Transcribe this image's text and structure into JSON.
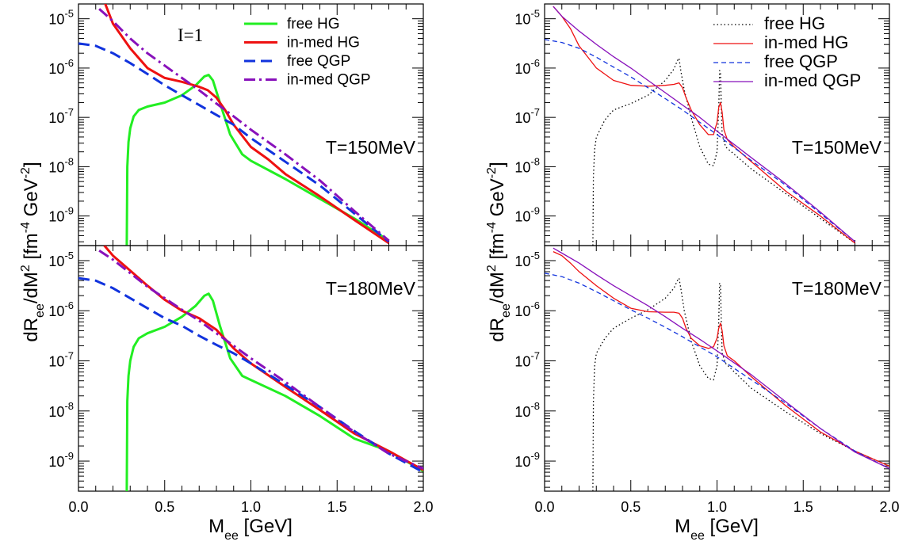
{
  "colors": {
    "free_HG_left": "#22ee22",
    "in_med_HG": "#ee1111",
    "free_QGP": "#1133dd",
    "in_med_QGP": "#8811bb",
    "free_HG_right": "#000000",
    "frame": "#000000"
  },
  "chart_data": [
    {
      "type": "line",
      "id": "left-top",
      "annotation": "I=1",
      "temperature_label": "T=150MeV",
      "xlim": [
        0.0,
        2.0
      ],
      "ylim_log10": [
        -9.6,
        -4.7
      ],
      "yscale": "log",
      "legend": [
        "free HG",
        "in-med HG",
        "free QGP",
        "in-med QGP"
      ],
      "series": [
        {
          "name": "free HG",
          "x": [
            0.28,
            0.283,
            0.29,
            0.3,
            0.32,
            0.35,
            0.4,
            0.5,
            0.6,
            0.68,
            0.73,
            0.755,
            0.78,
            0.82,
            0.88,
            0.95,
            1.0,
            1.2,
            1.4,
            1.6,
            1.8
          ],
          "y_log10": [
            -9.6,
            -8.0,
            -7.5,
            -7.22,
            -6.98,
            -6.85,
            -6.78,
            -6.7,
            -6.55,
            -6.35,
            -6.17,
            -6.14,
            -6.25,
            -6.7,
            -7.35,
            -7.75,
            -7.88,
            -8.25,
            -8.65,
            -9.05,
            -9.5
          ]
        },
        {
          "name": "in-med HG",
          "x": [
            0.15,
            0.2,
            0.3,
            0.4,
            0.5,
            0.6,
            0.7,
            0.75,
            0.8,
            0.85,
            0.9,
            1.0,
            1.1,
            1.2,
            1.4,
            1.6,
            1.8
          ],
          "y_log10": [
            -4.65,
            -5.1,
            -5.6,
            -6.0,
            -6.2,
            -6.28,
            -6.38,
            -6.45,
            -6.6,
            -6.85,
            -7.15,
            -7.6,
            -7.85,
            -8.15,
            -8.6,
            -9.08,
            -9.55
          ]
        },
        {
          "name": "free QGP",
          "x": [
            0.0,
            0.1,
            0.2,
            0.3,
            0.4,
            0.5,
            0.6,
            0.7,
            0.8,
            0.9,
            1.0,
            1.2,
            1.4,
            1.6,
            1.8
          ],
          "y_log10": [
            -5.5,
            -5.55,
            -5.7,
            -5.9,
            -6.12,
            -6.35,
            -6.55,
            -6.75,
            -6.95,
            -7.15,
            -7.42,
            -7.9,
            -8.38,
            -8.95,
            -9.52
          ]
        },
        {
          "name": "in-med QGP",
          "x": [
            0.12,
            0.2,
            0.3,
            0.4,
            0.5,
            0.6,
            0.7,
            0.8,
            0.9,
            1.0,
            1.2,
            1.4,
            1.6,
            1.8
          ],
          "y_log10": [
            -4.8,
            -5.05,
            -5.4,
            -5.7,
            -5.95,
            -6.2,
            -6.45,
            -6.72,
            -6.98,
            -7.25,
            -7.75,
            -8.28,
            -8.9,
            -9.5
          ]
        }
      ]
    },
    {
      "type": "line",
      "id": "left-bottom",
      "temperature_label": "T=180MeV",
      "xlim": [
        0.0,
        2.0
      ],
      "ylim_log10": [
        -9.6,
        -4.7
      ],
      "yscale": "log",
      "series": [
        {
          "name": "free HG",
          "x": [
            0.28,
            0.283,
            0.29,
            0.3,
            0.32,
            0.35,
            0.4,
            0.5,
            0.6,
            0.68,
            0.73,
            0.755,
            0.78,
            0.82,
            0.88,
            0.95,
            1.0,
            1.2,
            1.4,
            1.6,
            1.8,
            2.0
          ],
          "y_log10": [
            -9.6,
            -7.8,
            -7.3,
            -7.0,
            -6.72,
            -6.55,
            -6.45,
            -6.32,
            -6.12,
            -5.9,
            -5.7,
            -5.66,
            -5.8,
            -6.3,
            -6.95,
            -7.3,
            -7.38,
            -7.7,
            -8.1,
            -8.55,
            -8.8,
            -9.2
          ]
        },
        {
          "name": "in-med HG",
          "x": [
            0.15,
            0.2,
            0.3,
            0.4,
            0.5,
            0.6,
            0.7,
            0.8,
            0.9,
            1.0,
            1.2,
            1.4,
            1.6,
            1.8,
            2.0
          ],
          "y_log10": [
            -4.7,
            -4.9,
            -5.2,
            -5.5,
            -5.78,
            -6.0,
            -6.15,
            -6.38,
            -6.75,
            -7.05,
            -7.52,
            -7.98,
            -8.45,
            -8.8,
            -9.18
          ]
        },
        {
          "name": "free QGP",
          "x": [
            0.0,
            0.1,
            0.2,
            0.3,
            0.4,
            0.5,
            0.6,
            0.7,
            0.8,
            0.9,
            1.0,
            1.2,
            1.4,
            1.6,
            1.8,
            2.0
          ],
          "y_log10": [
            -5.35,
            -5.4,
            -5.55,
            -5.75,
            -5.95,
            -6.15,
            -6.3,
            -6.5,
            -6.68,
            -6.85,
            -7.05,
            -7.48,
            -7.92,
            -8.4,
            -8.85,
            -9.22
          ]
        },
        {
          "name": "in-med QGP",
          "x": [
            0.12,
            0.2,
            0.3,
            0.4,
            0.5,
            0.6,
            0.7,
            0.8,
            0.9,
            1.0,
            1.2,
            1.4,
            1.6,
            1.8,
            2.0
          ],
          "y_log10": [
            -4.8,
            -4.98,
            -5.25,
            -5.52,
            -5.75,
            -5.98,
            -6.2,
            -6.45,
            -6.7,
            -6.95,
            -7.42,
            -7.92,
            -8.42,
            -8.85,
            -9.15
          ]
        }
      ]
    },
    {
      "type": "line",
      "id": "right-top",
      "temperature_label": "T=150MeV",
      "xlim": [
        0.0,
        2.0
      ],
      "ylim_log10": [
        -9.6,
        -4.7
      ],
      "yscale": "log",
      "legend": [
        "free HG",
        "in-med HG",
        "free QGP",
        "in-med QGP"
      ],
      "series": [
        {
          "name": "free HG",
          "x": [
            0.28,
            0.283,
            0.29,
            0.3,
            0.35,
            0.4,
            0.5,
            0.6,
            0.7,
            0.75,
            0.77,
            0.78,
            0.79,
            0.81,
            0.85,
            0.9,
            0.95,
            0.98,
            1.0,
            1.01,
            1.015,
            1.02,
            1.025,
            1.03,
            1.05,
            1.1,
            1.2,
            1.4,
            1.6,
            1.8
          ],
          "y_log10": [
            -9.6,
            -8.2,
            -7.65,
            -7.4,
            -7.05,
            -6.85,
            -6.72,
            -6.55,
            -6.25,
            -6.02,
            -5.85,
            -5.8,
            -6.05,
            -6.45,
            -7.0,
            -7.6,
            -7.95,
            -7.98,
            -7.7,
            -6.8,
            -6.05,
            -6.1,
            -6.8,
            -7.35,
            -7.6,
            -7.75,
            -8.05,
            -8.55,
            -9.05,
            -9.55
          ]
        },
        {
          "name": "in-med HG",
          "x": [
            0.05,
            0.1,
            0.15,
            0.2,
            0.3,
            0.4,
            0.5,
            0.6,
            0.7,
            0.75,
            0.78,
            0.8,
            0.82,
            0.85,
            0.9,
            0.95,
            0.98,
            1.0,
            1.01,
            1.02,
            1.03,
            1.04,
            1.06,
            1.1,
            1.2,
            1.4,
            1.6,
            1.8
          ],
          "y_log10": [
            -4.75,
            -4.95,
            -5.2,
            -5.55,
            -6.0,
            -6.25,
            -6.35,
            -6.37,
            -6.35,
            -6.33,
            -6.3,
            -6.4,
            -6.6,
            -6.85,
            -7.15,
            -7.35,
            -7.35,
            -7.1,
            -6.8,
            -6.7,
            -6.9,
            -7.25,
            -7.45,
            -7.6,
            -7.9,
            -8.5,
            -9.0,
            -9.55
          ]
        },
        {
          "name": "free QGP",
          "x": [
            0.0,
            0.1,
            0.2,
            0.3,
            0.4,
            0.5,
            0.6,
            0.7,
            0.8,
            0.9,
            1.0,
            1.2,
            1.4,
            1.6,
            1.8
          ],
          "y_log10": [
            -5.42,
            -5.48,
            -5.6,
            -5.78,
            -5.98,
            -6.18,
            -6.4,
            -6.62,
            -6.85,
            -7.1,
            -7.35,
            -7.88,
            -8.38,
            -8.95,
            -9.52
          ]
        },
        {
          "name": "in-med QGP",
          "x": [
            0.05,
            0.1,
            0.2,
            0.3,
            0.4,
            0.5,
            0.6,
            0.7,
            0.8,
            0.9,
            1.0,
            1.2,
            1.4,
            1.6,
            1.8
          ],
          "y_log10": [
            -4.75,
            -4.95,
            -5.25,
            -5.52,
            -5.77,
            -6.0,
            -6.25,
            -6.5,
            -6.75,
            -7.0,
            -7.28,
            -7.82,
            -8.35,
            -8.92,
            -9.52
          ]
        }
      ]
    },
    {
      "type": "line",
      "id": "right-bottom",
      "temperature_label": "T=180MeV",
      "xlim": [
        0.0,
        2.0
      ],
      "ylim_log10": [
        -9.6,
        -4.7
      ],
      "yscale": "log",
      "series": [
        {
          "name": "free HG",
          "x": [
            0.28,
            0.283,
            0.29,
            0.3,
            0.35,
            0.4,
            0.5,
            0.6,
            0.7,
            0.75,
            0.77,
            0.78,
            0.79,
            0.81,
            0.85,
            0.9,
            0.95,
            0.98,
            1.0,
            1.01,
            1.015,
            1.02,
            1.025,
            1.03,
            1.05,
            1.1,
            1.2,
            1.4,
            1.6,
            1.8,
            2.0
          ],
          "y_log10": [
            -9.6,
            -7.8,
            -7.1,
            -6.85,
            -6.55,
            -6.35,
            -6.15,
            -5.98,
            -5.75,
            -5.55,
            -5.4,
            -5.35,
            -5.55,
            -6.0,
            -6.6,
            -7.1,
            -7.35,
            -7.38,
            -7.1,
            -6.2,
            -5.45,
            -5.5,
            -6.2,
            -6.85,
            -7.05,
            -7.22,
            -7.55,
            -8.02,
            -8.45,
            -8.8,
            -9.1
          ]
        },
        {
          "name": "in-med HG",
          "x": [
            0.05,
            0.1,
            0.15,
            0.2,
            0.3,
            0.4,
            0.5,
            0.6,
            0.7,
            0.75,
            0.78,
            0.8,
            0.82,
            0.85,
            0.9,
            0.95,
            0.98,
            1.0,
            1.01,
            1.02,
            1.03,
            1.04,
            1.06,
            1.1,
            1.2,
            1.4,
            1.6,
            1.8,
            2.0
          ],
          "y_log10": [
            -4.82,
            -4.9,
            -5.05,
            -5.22,
            -5.5,
            -5.75,
            -5.95,
            -6.02,
            -6.03,
            -6.03,
            -6.05,
            -6.15,
            -6.35,
            -6.55,
            -6.7,
            -6.75,
            -6.72,
            -6.55,
            -6.35,
            -6.25,
            -6.4,
            -6.7,
            -6.9,
            -7.0,
            -7.32,
            -7.9,
            -8.42,
            -8.8,
            -9.1
          ]
        },
        {
          "name": "free QGP",
          "x": [
            0.0,
            0.1,
            0.2,
            0.3,
            0.4,
            0.5,
            0.6,
            0.7,
            0.8,
            0.9,
            1.0,
            1.2,
            1.4,
            1.6,
            1.8,
            2.0
          ],
          "y_log10": [
            -5.25,
            -5.32,
            -5.45,
            -5.62,
            -5.8,
            -5.98,
            -6.15,
            -6.33,
            -6.52,
            -6.72,
            -6.92,
            -7.38,
            -7.85,
            -8.35,
            -8.8,
            -9.15
          ]
        },
        {
          "name": "in-med QGP",
          "x": [
            0.05,
            0.1,
            0.2,
            0.3,
            0.4,
            0.5,
            0.6,
            0.7,
            0.8,
            0.9,
            1.0,
            1.2,
            1.4,
            1.6,
            1.8,
            2.0
          ],
          "y_log10": [
            -4.75,
            -4.85,
            -5.05,
            -5.28,
            -5.5,
            -5.7,
            -5.9,
            -6.12,
            -6.35,
            -6.57,
            -6.8,
            -7.28,
            -7.82,
            -8.35,
            -8.82,
            -9.15
          ]
        }
      ]
    }
  ],
  "axes": {
    "x_title_main": "M",
    "x_title_sub": "ee",
    "x_title_unit": " [GeV]",
    "x_ticks": [
      "0.0",
      "0.5",
      "1.0",
      "1.5",
      "2.0"
    ],
    "y_title_d": "dR",
    "y_title_sub": "ee",
    "y_title_mid": "/dM",
    "y_title_sup2": "2",
    "y_title_fm": " [fm",
    "y_title_sup_m4": "-4",
    "y_title_gev": " GeV",
    "y_title_sup_m2": "-2",
    "y_title_close": "]",
    "y_tick_base": "10",
    "y_tick_exps": [
      "-9",
      "-8",
      "-7",
      "-6",
      "-5"
    ]
  }
}
